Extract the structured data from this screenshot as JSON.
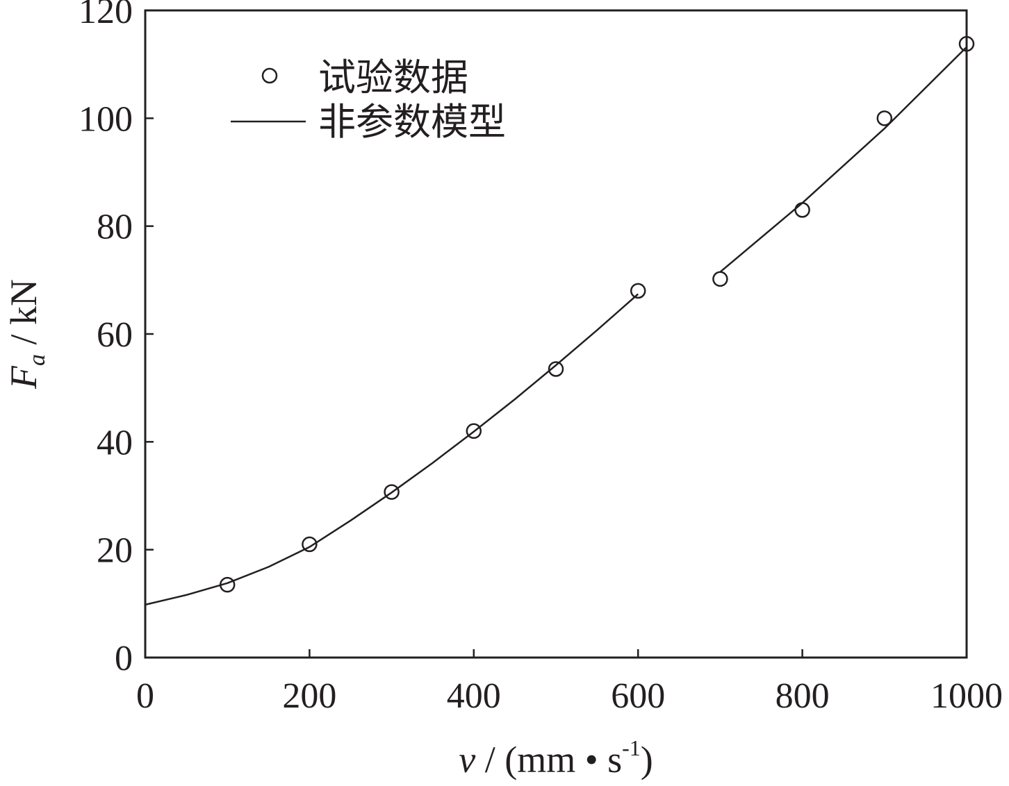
{
  "chart_data": {
    "type": "line",
    "x_axis": {
      "label_var": "v",
      "label_unit": " / (mm • s",
      "label_sup": "-1",
      "label_close": ")",
      "range": [
        0,
        1000
      ],
      "ticks": [
        0,
        200,
        400,
        600,
        800,
        1000
      ],
      "tick_labels": [
        "0",
        "200",
        "400",
        "600",
        "800",
        "1000"
      ]
    },
    "y_axis": {
      "label_var": "F",
      "label_sub": "a",
      "label_unit": " / kN",
      "range": [
        0,
        120
      ],
      "ticks": [
        0,
        20,
        40,
        60,
        80,
        100,
        120
      ],
      "tick_labels": [
        "0",
        "20",
        "40",
        "60",
        "80",
        "100",
        "120"
      ]
    },
    "grid": false,
    "legend_position": "top-left",
    "series": [
      {
        "name": "试验数据",
        "kind": "scatter",
        "marker": "open-circle",
        "color": "#231f20",
        "points": [
          [
            100,
            13.5
          ],
          [
            200,
            21
          ],
          [
            300,
            30.7
          ],
          [
            400,
            42
          ],
          [
            500,
            53.5
          ],
          [
            600,
            68
          ],
          [
            700,
            70.2
          ],
          [
            800,
            83
          ],
          [
            900,
            100
          ],
          [
            1000,
            113.8
          ]
        ]
      },
      {
        "name": "非参数模型",
        "kind": "line",
        "color": "#231f20",
        "segments": [
          [
            [
              0,
              9.8
            ],
            [
              50,
              11.6
            ],
            [
              100,
              13.8
            ],
            [
              150,
              16.8
            ],
            [
              200,
              20.5
            ],
            [
              250,
              25.4
            ],
            [
              300,
              30.6
            ],
            [
              350,
              36.1
            ],
            [
              400,
              41.9
            ],
            [
              450,
              47.9
            ],
            [
              500,
              54.2
            ],
            [
              550,
              60.7
            ],
            [
              600,
              67.4
            ]
          ],
          [
            [
              700,
              71.5
            ],
            [
              800,
              84.3
            ],
            [
              900,
              98.1
            ],
            [
              1000,
              113.2
            ]
          ]
        ]
      }
    ]
  }
}
